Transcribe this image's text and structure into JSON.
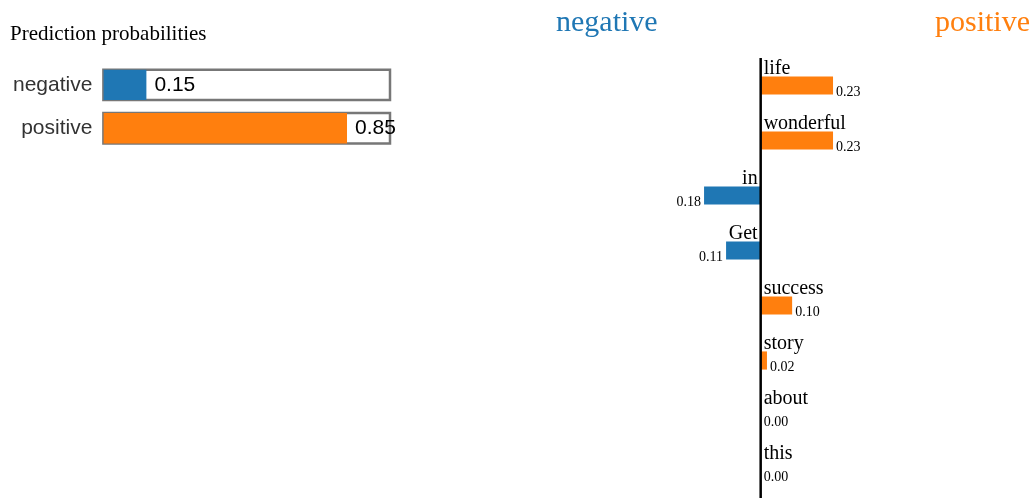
{
  "chart_data": [
    {
      "type": "bar",
      "orientation": "horizontal",
      "title": "Prediction probabilities",
      "categories": [
        "negative",
        "positive"
      ],
      "values": [
        0.15,
        0.85
      ],
      "colors": [
        "#1f77b4",
        "#ff7f0e"
      ],
      "xlim": [
        0,
        1
      ],
      "tick_labels": "y",
      "data_labels": true
    },
    {
      "type": "bar",
      "orientation": "horizontal",
      "stacked": true,
      "legend": "top",
      "categories": [
        "life",
        "wonderful",
        "in",
        "Get",
        "success",
        "story",
        "about",
        "this"
      ],
      "series": [
        {
          "name": "negative",
          "color": "#1f77b4",
          "values": [
            null,
            null,
            -0.18,
            -0.11,
            null,
            null,
            null,
            null
          ]
        },
        {
          "name": "positive",
          "color": "#ff7f0e",
          "values": [
            0.23,
            0.23,
            null,
            null,
            0.1,
            0.02,
            0.0,
            0.0
          ],
          "value_labels": [
            "0.23",
            "0.23",
            null,
            null,
            "0.10",
            "0.02",
            "0.00",
            "0.00"
          ]
        }
      ],
      "annotations": [
        {
          "text": "0.18",
          "x": -0.18,
          "y": "in"
        },
        {
          "text": "0.11",
          "x": -0.11,
          "y": "Get"
        }
      ]
    }
  ]
}
